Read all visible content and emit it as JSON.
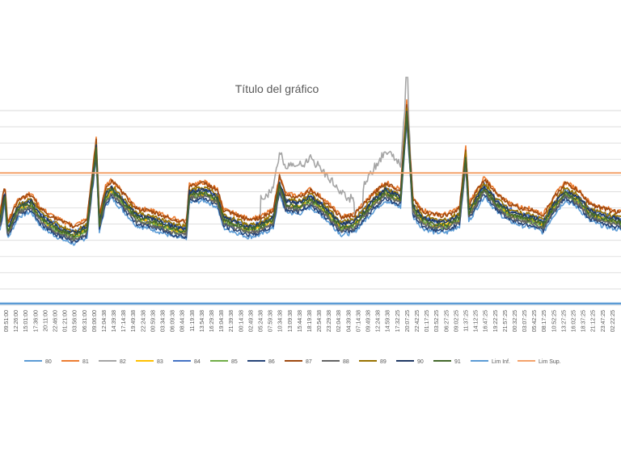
{
  "chart_data": {
    "type": "line",
    "title": "Título del gráfico",
    "xlabel": "",
    "ylabel": "",
    "grid": true,
    "legend_position": "bottom",
    "x_tick_labels": [
      "09:51:00",
      "12:26:00",
      "15:01:00",
      "17:36:00",
      "20:11:00",
      "22:46:00",
      "01:21:00",
      "03:56:00",
      "06:31:00",
      "09:06:00",
      "12:04:38",
      "14:39:38",
      "17:14:38",
      "19:49:38",
      "22:24:38",
      "00:59:38",
      "03:34:38",
      "06:09:38",
      "08:44:38",
      "11:19:38",
      "13:54:38",
      "16:29:38",
      "19:04:38",
      "21:39:38",
      "00:14:38",
      "02:49:38",
      "05:24:38",
      "07:59:38",
      "10:34:38",
      "13:09:38",
      "15:44:38",
      "18:19:38",
      "20:54:38",
      "23:29:38",
      "02:04:38",
      "04:39:38",
      "07:14:38",
      "09:49:38",
      "12:24:38",
      "14:59:38",
      "17:32:25",
      "20:07:25",
      "22:42:25",
      "01:17:25",
      "03:52:25",
      "06:27:25",
      "09:02:25",
      "11:37:25",
      "14:12:25",
      "16:47:25",
      "19:22:25",
      "21:57:25",
      "00:32:25",
      "03:07:25",
      "05:42:25",
      "08:17:25",
      "10:52:25",
      "13:27:25",
      "16:02:25",
      "18:37:25",
      "21:12:25",
      "23:47:25",
      "02:22:25"
    ],
    "ylim": [
      0,
      1
    ],
    "y_tick_count": 13,
    "series": [
      {
        "name": "80",
        "color": "#5b9bd5",
        "offset": -0.03
      },
      {
        "name": "81",
        "color": "#ed7d31",
        "offset": 0.05
      },
      {
        "name": "82",
        "color": "#a5a5a5",
        "offset": 0.0,
        "grey_rise": true
      },
      {
        "name": "83",
        "color": "#ffc000",
        "offset": 0.0
      },
      {
        "name": "84",
        "color": "#4472c4",
        "offset": 0.02
      },
      {
        "name": "85",
        "color": "#70ad47",
        "offset": -0.005
      },
      {
        "name": "86",
        "color": "#264478",
        "offset": -0.02
      },
      {
        "name": "87",
        "color": "#9e480e",
        "offset": 0.045
      },
      {
        "name": "88",
        "color": "#636363",
        "offset": -0.01
      },
      {
        "name": "89",
        "color": "#997300",
        "offset": 0.025
      },
      {
        "name": "90",
        "color": "#1f3864",
        "offset": 0.015
      },
      {
        "name": "91",
        "color": "#43682b",
        "offset": 0.005
      }
    ],
    "envelope": [
      [
        0.0,
        0.34
      ],
      [
        0.008,
        0.46
      ],
      [
        0.012,
        0.3
      ],
      [
        0.03,
        0.4
      ],
      [
        0.05,
        0.42
      ],
      [
        0.065,
        0.36
      ],
      [
        0.08,
        0.33
      ],
      [
        0.1,
        0.3
      ],
      [
        0.12,
        0.28
      ],
      [
        0.14,
        0.31
      ],
      [
        0.155,
        0.66
      ],
      [
        0.16,
        0.33
      ],
      [
        0.17,
        0.45
      ],
      [
        0.18,
        0.48
      ],
      [
        0.2,
        0.42
      ],
      [
        0.22,
        0.36
      ],
      [
        0.25,
        0.34
      ],
      [
        0.28,
        0.31
      ],
      [
        0.3,
        0.3
      ],
      [
        0.305,
        0.46
      ],
      [
        0.33,
        0.47
      ],
      [
        0.35,
        0.44
      ],
      [
        0.36,
        0.35
      ],
      [
        0.38,
        0.33
      ],
      [
        0.4,
        0.31
      ],
      [
        0.42,
        0.32
      ],
      [
        0.44,
        0.35
      ],
      [
        0.45,
        0.5
      ],
      [
        0.46,
        0.42
      ],
      [
        0.48,
        0.41
      ],
      [
        0.5,
        0.44
      ],
      [
        0.52,
        0.4
      ],
      [
        0.55,
        0.32
      ],
      [
        0.57,
        0.33
      ],
      [
        0.6,
        0.42
      ],
      [
        0.62,
        0.47
      ],
      [
        0.645,
        0.44
      ],
      [
        0.655,
        0.82
      ],
      [
        0.665,
        0.4
      ],
      [
        0.68,
        0.35
      ],
      [
        0.7,
        0.33
      ],
      [
        0.72,
        0.33
      ],
      [
        0.74,
        0.36
      ],
      [
        0.75,
        0.62
      ],
      [
        0.755,
        0.38
      ],
      [
        0.78,
        0.49
      ],
      [
        0.8,
        0.42
      ],
      [
        0.82,
        0.38
      ],
      [
        0.84,
        0.36
      ],
      [
        0.86,
        0.35
      ],
      [
        0.875,
        0.33
      ],
      [
        0.89,
        0.4
      ],
      [
        0.91,
        0.47
      ],
      [
        0.93,
        0.44
      ],
      [
        0.95,
        0.38
      ],
      [
        0.97,
        0.36
      ],
      [
        1.0,
        0.34
      ]
    ],
    "grey_rise_segments": [
      [
        0.42,
        0.57
      ],
      [
        0.585,
        0.66
      ]
    ],
    "lim_inf": {
      "name": "Lim Inf.",
      "value": 0.0,
      "color": "#5b9bd5"
    },
    "lim_sup": {
      "name": "Lim Sup.",
      "value": 0.56,
      "color": "#f4a26b"
    }
  }
}
